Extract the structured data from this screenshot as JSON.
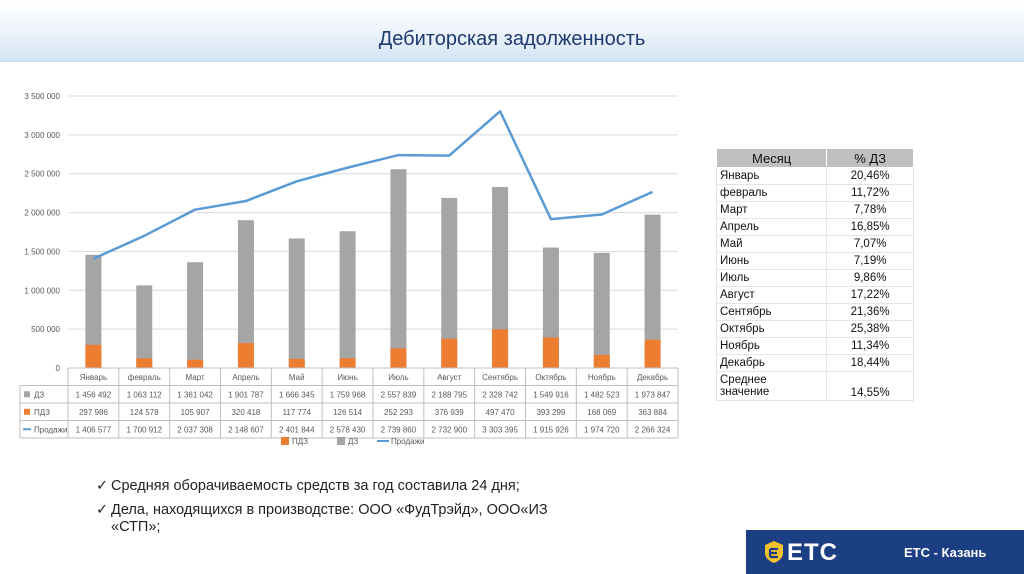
{
  "title": "Дебиторская задолженность",
  "chart_data": {
    "type": "bar",
    "stacked": false,
    "categories": [
      "Январь",
      "февраль",
      "Март",
      "Апрель",
      "Май",
      "Июнь",
      "Июль",
      "Август",
      "Сентябрь",
      "Октябрь",
      "Ноябрь",
      "Декабрь"
    ],
    "yticks": [
      "0",
      "500 000",
      "1 000 000",
      "1 500 000",
      "2 000 000",
      "2 500 000",
      "3 000 000",
      "3 500 000"
    ],
    "ylim": [
      0,
      3500000
    ],
    "series": [
      {
        "name": "ПДЗ",
        "kind": "bar",
        "color": "#ed7d31",
        "values": [
          297986,
          124578,
          105907,
          320418,
          117774,
          126514,
          252293,
          376939,
          497470,
          393299,
          168069,
          363884
        ],
        "labels": [
          "297 986",
          "124 578",
          "105 907",
          "320 418",
          "117 774",
          "126 514",
          "252 293",
          "376 939",
          "497 470",
          "393 299",
          "168 069",
          "363 884"
        ]
      },
      {
        "name": "ДЗ",
        "kind": "bar",
        "color": "#a5a5a5",
        "values": [
          1456492,
          1063112,
          1361042,
          1901787,
          1666345,
          1759968,
          2557839,
          2188795,
          2328742,
          1549916,
          1482523,
          1973847
        ],
        "labels": [
          "1 456 492",
          "1 063 112",
          "1 361 042",
          "1 901 787",
          "1 666 345",
          "1 759 968",
          "2 557 839",
          "2 188 795",
          "2 328 742",
          "1 549 916",
          "1 482 523",
          "1 973 847"
        ]
      },
      {
        "name": "Продажи",
        "kind": "line",
        "color": "#5b9bd5",
        "values": [
          1406577,
          1700912,
          2037308,
          2148607,
          2401844,
          2578430,
          2739860,
          2732900,
          3303395,
          1915926,
          1974720,
          2266324
        ],
        "labels": [
          "1 406 577",
          "1 700 912",
          "2 037 308",
          "2 148 607",
          "2 401 844",
          "2 578 430",
          "2 739 860",
          "2 732 900",
          "3 303 395",
          "1 915 926",
          "1 974 720",
          "2 266 324"
        ]
      }
    ],
    "table_row_order": [
      "ДЗ",
      "ПДЗ",
      "Продажи"
    ],
    "legend": [
      "ПДЗ",
      "ДЗ",
      "Продажи"
    ],
    "legend_position": "bottom",
    "grid": true
  },
  "side_table": {
    "headers": [
      "Месяц",
      "% ДЗ"
    ],
    "rows": [
      [
        "Январь",
        "20,46%"
      ],
      [
        "февраль",
        "11,72%"
      ],
      [
        "Март",
        "7,78%"
      ],
      [
        "Апрель",
        "16,85%"
      ],
      [
        "Май",
        "7,07%"
      ],
      [
        "Июнь",
        "7,19%"
      ],
      [
        "Июль",
        "9,86%"
      ],
      [
        "Август",
        "17,22%"
      ],
      [
        "Сентябрь",
        "21,36%"
      ],
      [
        "Октябрь",
        "25,38%"
      ],
      [
        "Ноябрь",
        "11,34%"
      ],
      [
        "Декабрь",
        "18,44%"
      ]
    ],
    "avg_label_line1": "Среднее",
    "avg_label_line2": "значение",
    "avg_value": "14,55%"
  },
  "bullets": {
    "check": "✓",
    "b1": "Средняя оборачиваемость средств за год составила 24 дня;",
    "b2_line1": "Дела, находящихся в производстве: ООО «ФудТрэйд», ООО«ИЗ",
    "b2_line2": "«СТП»;"
  },
  "footer": {
    "logo_text": "ETC",
    "city": "ETC - Казань",
    "logo_color": "#f2c12e",
    "bar_color": "#1c3f84"
  }
}
